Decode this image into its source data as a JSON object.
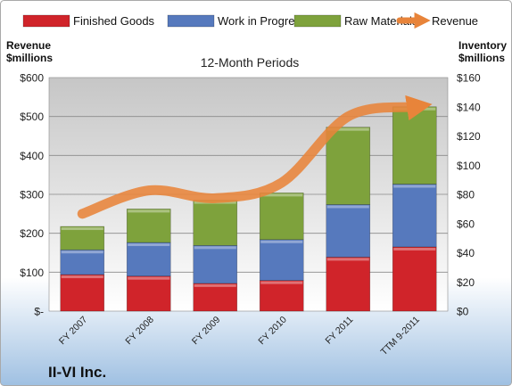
{
  "colors": {
    "finished": "#d0242a",
    "wip": "#5679bd",
    "raw": "#7ea23c",
    "revenue": "#e8843a",
    "bg_top": "#ffffff",
    "bg_bottom": "#9fc0e2",
    "plot_top": "#c6c6c6",
    "plot_bottom": "#ffffff"
  },
  "icons": {
    "finished": "legend-swatch-finished-goods",
    "wip": "legend-swatch-work-in-progress",
    "raw": "legend-swatch-raw-materials",
    "revenue": "legend-arrow-revenue"
  },
  "company": "II-VI Inc.",
  "chart_data": {
    "type": "bar",
    "stacked": true,
    "title": "12-Month Periods",
    "ylabel": "Revenue\n$millions",
    "y2label": "Inventory\n$millions",
    "categories": [
      "FY 2007",
      "FY 2008",
      "FY 2009",
      "FY 2010",
      "FY 2011",
      "TTM 9-2011"
    ],
    "ylim": [
      0,
      600
    ],
    "yticks": [
      0,
      100,
      200,
      300,
      400,
      500,
      600
    ],
    "ytick_labels": [
      "$-",
      "$100",
      "$200",
      "$300",
      "$400",
      "$500",
      "$600"
    ],
    "y2lim": [
      0,
      160
    ],
    "y2ticks": [
      0,
      20,
      40,
      60,
      80,
      100,
      120,
      140,
      160
    ],
    "y2tick_labels": [
      "$0",
      "$20",
      "$40",
      "$60",
      "$80",
      "$100",
      "$120",
      "$140",
      "$160"
    ],
    "grid": true,
    "legend": "top",
    "series": [
      {
        "name": "Finished Goods",
        "axis": "y2",
        "values": [
          25,
          24,
          19,
          21,
          37,
          44
        ]
      },
      {
        "name": "Work in Progress",
        "axis": "y2",
        "values": [
          17,
          23,
          26,
          28,
          36,
          43
        ]
      },
      {
        "name": "Raw Materials",
        "axis": "y2",
        "values": [
          16,
          23,
          31,
          32,
          53,
          53
        ]
      },
      {
        "name": "Revenue",
        "axis": "y",
        "type": "line",
        "values": [
          250,
          310,
          290,
          330,
          500,
          525
        ]
      }
    ]
  }
}
